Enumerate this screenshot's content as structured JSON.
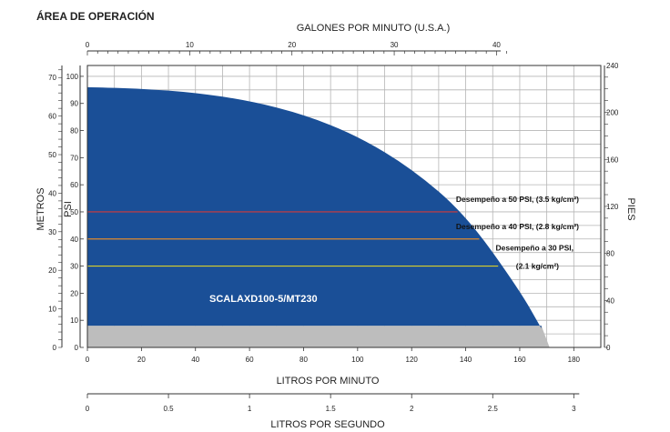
{
  "chart_data": {
    "type": "area",
    "title": "ÁREA DE OPERACIÓN",
    "series": [
      {
        "name": "SCALAXD100-5/MT230",
        "x": [
          0,
          20,
          40,
          60,
          80,
          100,
          120,
          140,
          160,
          168
        ],
        "y": [
          96,
          95.5,
          94,
          91,
          86,
          78,
          66,
          49,
          21,
          7
        ],
        "color": "#1a4f97"
      }
    ],
    "curve_floor_psi": 8,
    "pressure_lines": [
      {
        "label": "Desempeño a 50 PSI, (3.5 kg/cm²)",
        "psi": 50,
        "x_end": 137,
        "color": "#d33a3a"
      },
      {
        "label": "Desempeño a 40 PSI, (2.8 kg/cm²)",
        "psi": 40,
        "x_end": 145,
        "color": "#e08a2c"
      },
      {
        "label_lines": [
          "Desempeño a 30 PSI,",
          "(2.1 kg/cm²)"
        ],
        "psi": 30,
        "x_end": 152,
        "color": "#d9cf2a"
      }
    ],
    "axes": {
      "bottom": {
        "label": "LITROS POR MINUTO",
        "range": [
          0,
          190
        ],
        "ticks": [
          0,
          20,
          40,
          60,
          80,
          100,
          120,
          140,
          160,
          180
        ]
      },
      "top": {
        "label": "GALONES POR MINUTO (U.S.A.)",
        "range_lpm": [
          0,
          190
        ],
        "ticks": [
          0,
          10,
          20,
          30,
          40
        ],
        "lpm_per_unit": 3.785
      },
      "psi": {
        "label": "PSI",
        "range": [
          0,
          104
        ],
        "ticks": [
          0,
          10,
          20,
          30,
          40,
          50,
          60,
          70,
          80,
          90,
          100
        ]
      },
      "metros": {
        "label": "METROS",
        "ticks": [
          0,
          10,
          20,
          30,
          40,
          50,
          60,
          70
        ],
        "psi_per_unit": 1.4223
      },
      "pies": {
        "label": "PIES",
        "ticks": [
          0,
          40,
          80,
          120,
          160,
          200,
          240
        ],
        "psi_per_unit": 0.4335
      },
      "lps": {
        "label": "LITROS POR SEGUNDO",
        "ticks": [
          "0",
          "0.5",
          "1",
          "1.5",
          "2",
          "2.5",
          "3"
        ],
        "values": [
          0,
          0.5,
          1,
          1.5,
          2,
          2.5,
          3
        ]
      }
    },
    "grid": true,
    "model_label": "SCALAXD100-5/MT230"
  },
  "colors": {
    "area": "#1a4f97",
    "shadow": "#bdbdbd",
    "grid": "#b5b5b5"
  }
}
